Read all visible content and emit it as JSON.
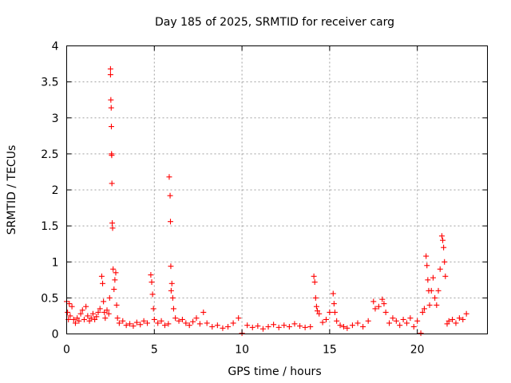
{
  "chart_data": {
    "type": "scatter",
    "title": "Day 185 of 2025, SRMTID for receiver carg",
    "xlabel": "GPS time / hours",
    "ylabel": "SRMTID / TECUs",
    "xlim": [
      0,
      24
    ],
    "ylim": [
      0,
      4
    ],
    "x_ticks": [
      0,
      5,
      10,
      15,
      20
    ],
    "x_tick_labels": [
      "0",
      "5",
      "10",
      "15",
      "20"
    ],
    "y_ticks": [
      0,
      0.5,
      1,
      1.5,
      2,
      2.5,
      3,
      3.5,
      4
    ],
    "y_tick_labels": [
      "0",
      "0.5",
      "1",
      "1.5",
      "2",
      "2.5",
      "3",
      "3.5",
      "4"
    ],
    "grid": true,
    "marker": "+",
    "marker_color": "#ff0000",
    "series": [
      {
        "name": "SRMTID",
        "x": [
          0.0,
          0.05,
          0.1,
          0.15,
          0.2,
          0.3,
          0.4,
          0.5,
          0.6,
          0.7,
          0.8,
          0.9,
          1.0,
          1.1,
          1.2,
          1.3,
          1.4,
          1.5,
          1.6,
          1.7,
          1.8,
          1.9,
          2.0,
          2.05,
          2.1,
          2.15,
          2.2,
          2.3,
          2.4,
          2.45,
          2.5,
          2.5,
          2.52,
          2.54,
          2.55,
          2.56,
          2.57,
          2.58,
          2.6,
          2.62,
          2.65,
          2.7,
          2.75,
          2.8,
          2.85,
          2.9,
          3.0,
          3.2,
          3.4,
          3.6,
          3.8,
          4.0,
          4.2,
          4.4,
          4.6,
          4.8,
          4.85,
          4.9,
          4.95,
          5.0,
          5.2,
          5.4,
          5.6,
          5.8,
          5.85,
          5.9,
          5.92,
          5.94,
          5.96,
          6.0,
          6.05,
          6.1,
          6.2,
          6.4,
          6.6,
          6.8,
          7.0,
          7.2,
          7.4,
          7.6,
          7.8,
          8.0,
          8.3,
          8.6,
          8.9,
          9.2,
          9.5,
          9.8,
          10.0,
          10.3,
          10.6,
          10.9,
          11.2,
          11.5,
          11.8,
          12.1,
          12.4,
          12.7,
          13.0,
          13.3,
          13.6,
          13.9,
          14.1,
          14.15,
          14.2,
          14.25,
          14.3,
          14.4,
          14.6,
          14.8,
          15.0,
          15.2,
          15.25,
          15.3,
          15.4,
          15.6,
          15.8,
          16.0,
          16.3,
          16.6,
          16.9,
          17.2,
          17.5,
          17.6,
          17.8,
          18.0,
          18.1,
          18.2,
          18.4,
          18.6,
          18.8,
          19.0,
          19.2,
          19.4,
          19.6,
          19.8,
          20.0,
          20.2,
          20.3,
          20.4,
          20.5,
          20.55,
          20.6,
          20.65,
          20.7,
          20.8,
          20.9,
          21.0,
          21.1,
          21.2,
          21.3,
          21.4,
          21.45,
          21.5,
          21.55,
          21.6,
          21.7,
          21.8,
          22.0,
          22.2,
          22.4,
          22.6,
          22.8
        ],
        "y": [
          0.45,
          0.3,
          0.2,
          0.42,
          0.25,
          0.38,
          0.2,
          0.15,
          0.22,
          0.18,
          0.28,
          0.33,
          0.2,
          0.38,
          0.25,
          0.18,
          0.22,
          0.28,
          0.2,
          0.24,
          0.3,
          0.35,
          0.8,
          0.7,
          0.45,
          0.3,
          0.22,
          0.33,
          0.28,
          0.5,
          3.68,
          3.6,
          3.25,
          3.14,
          2.88,
          2.5,
          2.48,
          2.09,
          1.54,
          1.47,
          0.9,
          0.62,
          0.75,
          0.85,
          0.4,
          0.22,
          0.15,
          0.18,
          0.12,
          0.14,
          0.11,
          0.16,
          0.13,
          0.18,
          0.15,
          0.82,
          0.72,
          0.55,
          0.35,
          0.2,
          0.15,
          0.18,
          0.12,
          0.14,
          2.18,
          1.92,
          1.56,
          0.94,
          0.6,
          0.7,
          0.5,
          0.35,
          0.22,
          0.18,
          0.2,
          0.15,
          0.12,
          0.17,
          0.22,
          0.14,
          0.3,
          0.15,
          0.1,
          0.12,
          0.08,
          0.1,
          0.15,
          0.22,
          0.01,
          0.12,
          0.09,
          0.11,
          0.07,
          0.1,
          0.13,
          0.09,
          0.12,
          0.1,
          0.14,
          0.11,
          0.09,
          0.1,
          0.8,
          0.72,
          0.5,
          0.38,
          0.32,
          0.28,
          0.16,
          0.2,
          0.3,
          0.56,
          0.42,
          0.3,
          0.18,
          0.12,
          0.1,
          0.08,
          0.12,
          0.15,
          0.1,
          0.18,
          0.45,
          0.35,
          0.38,
          0.48,
          0.42,
          0.3,
          0.15,
          0.22,
          0.18,
          0.12,
          0.2,
          0.15,
          0.22,
          0.1,
          0.18,
          0.01,
          0.3,
          0.35,
          1.08,
          0.95,
          0.75,
          0.6,
          0.4,
          0.6,
          0.78,
          0.5,
          0.4,
          0.6,
          0.9,
          1.36,
          1.3,
          1.2,
          1.0,
          0.8,
          0.14,
          0.18,
          0.2,
          0.15,
          0.22,
          0.2,
          0.28
        ]
      }
    ]
  }
}
